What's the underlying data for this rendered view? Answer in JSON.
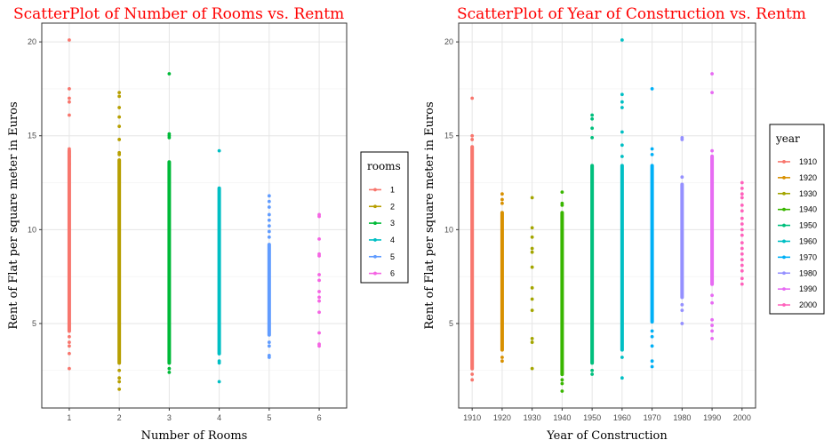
{
  "chart_data": [
    {
      "type": "scatter",
      "title": "ScatterPlot of Number of Rooms vs. Rentm",
      "xlabel": "Number of Rooms",
      "ylabel": "Rent of Flat per square meter in Euros",
      "x_ticks": [
        "1",
        "2",
        "3",
        "4",
        "5",
        "6"
      ],
      "y_ticks": [
        "5",
        "10",
        "15",
        "20"
      ],
      "xlim": [
        0.45,
        6.55
      ],
      "ylim": [
        0.5,
        21
      ],
      "grid": true,
      "legend": {
        "title": "rooms",
        "placement": "right"
      },
      "series": [
        {
          "name": "1",
          "color": "#F8766D",
          "x": 1,
          "solid_range": [
            4.5,
            14.3
          ],
          "points": [
            20.1,
            17.5,
            17.0,
            16.8,
            16.1,
            14.3,
            13.9,
            13.5,
            4.3,
            4.0,
            3.8,
            3.4,
            2.6
          ]
        },
        {
          "name": "2",
          "color": "#B79F00",
          "x": 2,
          "solid_range": [
            2.8,
            13.8
          ],
          "points": [
            17.3,
            17.1,
            16.5,
            16.0,
            15.5,
            14.8,
            14.1,
            14.0,
            2.5,
            2.1,
            1.9,
            1.5
          ]
        },
        {
          "name": "3",
          "color": "#00BA38",
          "x": 3,
          "solid_range": [
            2.8,
            13.7
          ],
          "points": [
            18.3,
            15.1,
            15.0,
            14.9,
            2.6,
            2.4
          ]
        },
        {
          "name": "4",
          "color": "#00BFC4",
          "x": 4,
          "solid_range": [
            3.3,
            12.3
          ],
          "points": [
            14.2,
            3.0,
            2.9,
            1.9
          ]
        },
        {
          "name": "5",
          "color": "#619CFF",
          "x": 5,
          "solid_range": [
            4.3,
            9.3
          ],
          "points": [
            11.8,
            11.5,
            11.2,
            10.8,
            10.5,
            10.2,
            9.9,
            9.6,
            4.0,
            3.8,
            3.3,
            3.2
          ]
        },
        {
          "name": "6",
          "color": "#F564E3",
          "x": 6,
          "solid_range": null,
          "points": [
            10.8,
            10.7,
            9.5,
            8.7,
            8.6,
            7.6,
            7.3,
            6.7,
            6.4,
            6.2,
            5.6,
            4.5,
            3.9,
            3.8
          ]
        }
      ]
    },
    {
      "type": "scatter",
      "title": "ScatterPlot of Year of Construction vs. Rentm",
      "xlabel": "Year of Construction",
      "ylabel": "Rent of Flat per square meter in Euros",
      "x_ticks": [
        "1910",
        "1920",
        "1930",
        "1940",
        "1950",
        "1960",
        "1970",
        "1980",
        "1990",
        "2000"
      ],
      "y_ticks": [
        "5",
        "10",
        "15",
        "20"
      ],
      "xlim": [
        1905.5,
        2004.5
      ],
      "ylim": [
        0.5,
        21
      ],
      "grid": true,
      "legend": {
        "title": "year",
        "placement": "right"
      },
      "series": [
        {
          "name": "1910",
          "color": "#F8766D",
          "x": 1910,
          "solid_range": [
            2.5,
            14.5
          ],
          "points": [
            17.0,
            15.0,
            14.8,
            2.3,
            2.0
          ]
        },
        {
          "name": "1920",
          "color": "#D89000",
          "x": 1920,
          "solid_range": [
            3.5,
            11.0
          ],
          "points": [
            11.9,
            11.6,
            11.4,
            3.2,
            3.0
          ]
        },
        {
          "name": "1930",
          "color": "#A3A500",
          "x": 1930,
          "solid_range": null,
          "points": [
            11.7,
            10.1,
            9.6,
            9.0,
            8.8,
            8.0,
            6.9,
            6.3,
            5.7,
            4.2,
            4.0,
            2.6
          ]
        },
        {
          "name": "1940",
          "color": "#39B600",
          "x": 1940,
          "solid_range": [
            2.2,
            11.0
          ],
          "points": [
            12.0,
            11.4,
            11.3,
            2.0,
            1.8,
            1.4
          ]
        },
        {
          "name": "1950",
          "color": "#00BF7D",
          "x": 1950,
          "solid_range": [
            2.8,
            13.5
          ],
          "points": [
            16.1,
            15.9,
            15.4,
            14.9,
            2.5,
            2.3
          ]
        },
        {
          "name": "1960",
          "color": "#00BFC4",
          "x": 1960,
          "solid_range": [
            3.5,
            13.5
          ],
          "points": [
            20.1,
            17.2,
            16.8,
            16.5,
            15.2,
            14.5,
            13.9,
            3.2,
            2.1
          ]
        },
        {
          "name": "1970",
          "color": "#00B0F6",
          "x": 1970,
          "solid_range": [
            5.0,
            13.5
          ],
          "points": [
            17.5,
            14.3,
            14.0,
            4.6,
            4.3,
            3.8,
            3.0,
            2.7
          ]
        },
        {
          "name": "1980",
          "color": "#9590FF",
          "x": 1980,
          "solid_range": [
            6.3,
            12.5
          ],
          "points": [
            14.9,
            14.8,
            12.8,
            6.0,
            5.7,
            5.0
          ]
        },
        {
          "name": "1990",
          "color": "#E76BF3",
          "x": 1990,
          "solid_range": [
            7.0,
            14.0
          ],
          "points": [
            18.3,
            17.3,
            14.2,
            6.5,
            6.1,
            5.2,
            4.9,
            4.6,
            4.2
          ]
        },
        {
          "name": "2000",
          "color": "#FF62BC",
          "x": 2000,
          "solid_range": null,
          "points": [
            12.5,
            12.2,
            11.9,
            11.7,
            11.3,
            11.0,
            10.6,
            10.3,
            10.0,
            9.7,
            9.3,
            9.0,
            8.7,
            8.4,
            8.1,
            7.8,
            7.4,
            7.1
          ]
        }
      ]
    }
  ]
}
